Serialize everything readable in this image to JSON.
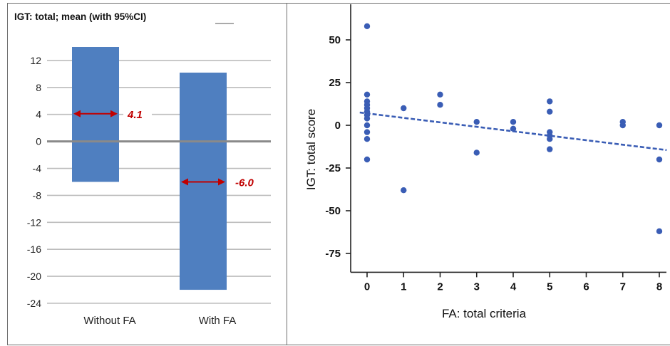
{
  "chart_data": [
    {
      "type": "bar",
      "title": "IGT: total; mean (with 95%CI)",
      "categories": [
        "Without FA",
        "With FA"
      ],
      "series": [
        {
          "ci_low": [
            -6,
            -22
          ],
          "ci_high": [
            14,
            10.2
          ],
          "mean": [
            4.1,
            -6.0
          ],
          "mean_labels": [
            "4.1",
            "-6.0"
          ]
        }
      ],
      "ylim": [
        -24,
        14
      ],
      "yticks": [
        12,
        8,
        4,
        0,
        -4,
        -8,
        -12,
        -16,
        -20,
        -24
      ],
      "grid": true,
      "colors": {
        "bar": "#4f7fc0",
        "arrow": "#c00000",
        "zero_line": "#8a8a8a"
      }
    },
    {
      "type": "scatter",
      "xlabel": "FA: total criteria",
      "ylabel": "IGT: total score",
      "xlim": [
        -0.2,
        8.2
      ],
      "ylim": [
        -86,
        62
      ],
      "xticks": [
        0,
        1,
        2,
        3,
        4,
        5,
        6,
        7,
        8
      ],
      "yticks": [
        50,
        25,
        0,
        -25,
        -50,
        -75
      ],
      "points": [
        {
          "x": 0,
          "y": 58
        },
        {
          "x": 0,
          "y": 18
        },
        {
          "x": 0,
          "y": 14
        },
        {
          "x": 0,
          "y": 12
        },
        {
          "x": 0,
          "y": 10
        },
        {
          "x": 0,
          "y": 8
        },
        {
          "x": 0,
          "y": 6
        },
        {
          "x": 0,
          "y": 4
        },
        {
          "x": 0,
          "y": 0
        },
        {
          "x": 0,
          "y": -4
        },
        {
          "x": 0,
          "y": -8
        },
        {
          "x": 0,
          "y": -20
        },
        {
          "x": 1,
          "y": 10
        },
        {
          "x": 1,
          "y": -38
        },
        {
          "x": 2,
          "y": 18
        },
        {
          "x": 2,
          "y": 12
        },
        {
          "x": 3,
          "y": 2
        },
        {
          "x": 3,
          "y": -16
        },
        {
          "x": 4,
          "y": 2
        },
        {
          "x": 4,
          "y": -2
        },
        {
          "x": 5,
          "y": 14
        },
        {
          "x": 5,
          "y": 8
        },
        {
          "x": 5,
          "y": -4
        },
        {
          "x": 5,
          "y": -6
        },
        {
          "x": 5,
          "y": -8
        },
        {
          "x": 5,
          "y": -14
        },
        {
          "x": 7,
          "y": 2
        },
        {
          "x": 7,
          "y": 0
        },
        {
          "x": 8,
          "y": 0
        },
        {
          "x": 8,
          "y": -20
        },
        {
          "x": 8,
          "y": -62
        }
      ],
      "trendline": {
        "x": [
          -0.2,
          8.2
        ],
        "y": [
          7.5,
          -14.5
        ]
      },
      "grid": false,
      "colors": {
        "point": "#3a5db5",
        "trendline": "#3a5db5"
      }
    }
  ]
}
